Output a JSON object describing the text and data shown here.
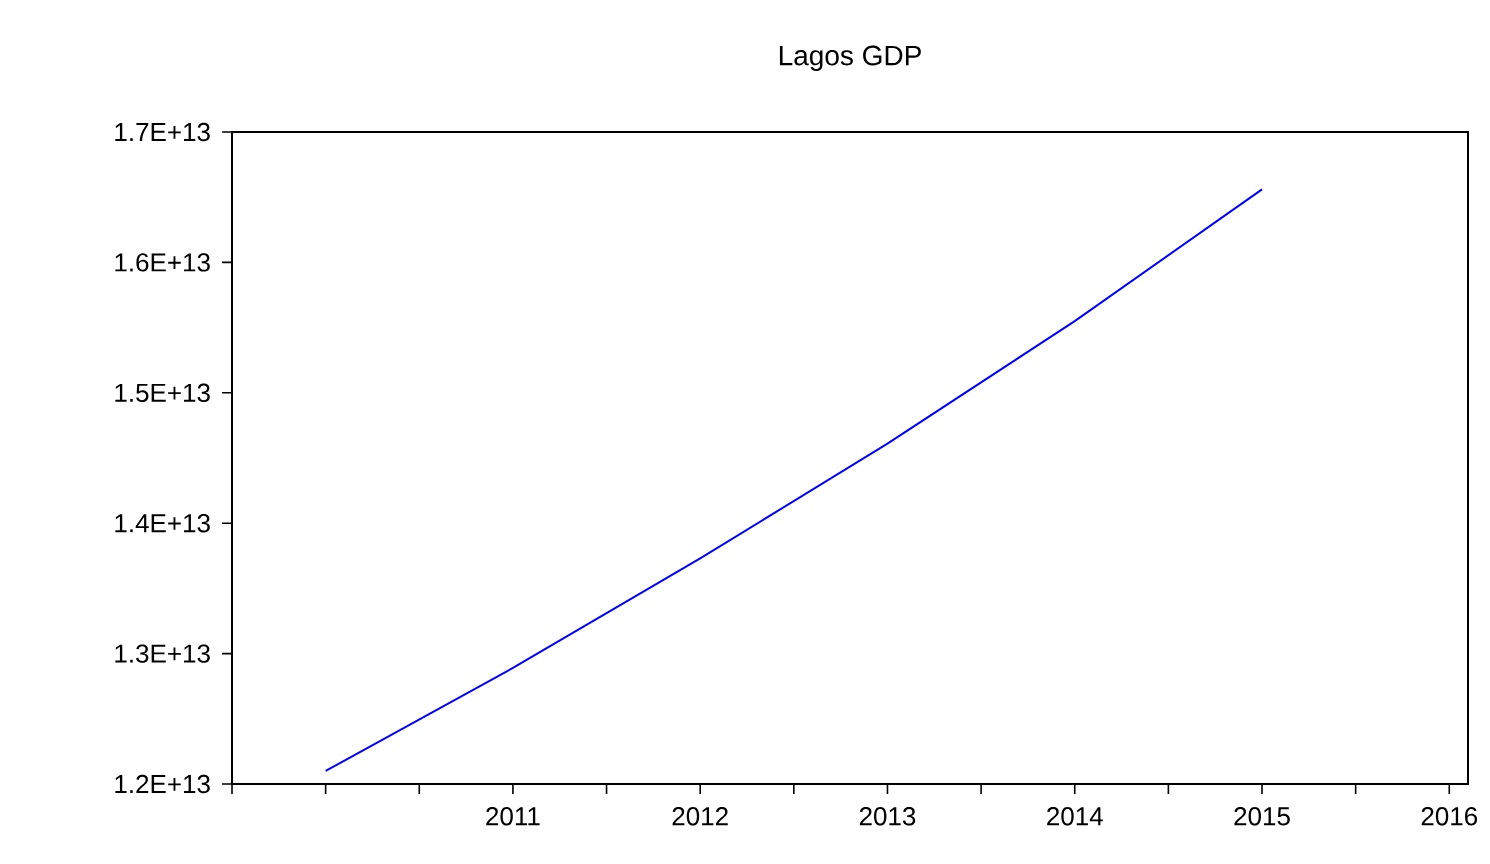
{
  "chart_data": {
    "type": "line",
    "title": "Lagos GDP",
    "x": [
      2010,
      2011,
      2012,
      2013,
      2014,
      2015
    ],
    "values": [
      12100000000000.0,
      12890000000000.0,
      13730000000000.0,
      14610000000000.0,
      15550000000000.0,
      16560000000000.0
    ],
    "color": "#0000ff",
    "marker": "none",
    "line_style": "solid",
    "xlim": [
      2009.5,
      2016.1
    ],
    "xticks": [
      {
        "value": 2009.5,
        "label": null
      },
      {
        "value": 2010,
        "label": null
      },
      {
        "value": 2010.5,
        "label": null
      },
      2011,
      {
        "value": 2011.5,
        "label": null
      },
      2012,
      {
        "value": 2012.5,
        "label": null
      },
      2013,
      {
        "value": 2013.5,
        "label": null
      },
      2014,
      {
        "value": 2014.5,
        "label": null
      },
      2015,
      {
        "value": 2015.5,
        "label": null
      },
      2016
    ],
    "ylim": [
      12000000000000.0,
      17000000000000.0
    ],
    "yticks": [
      {
        "value": 12000000000000.0,
        "label": "1.2E+13"
      },
      {
        "value": 13000000000000.0,
        "label": "1.3E+13"
      },
      {
        "value": 14000000000000.0,
        "label": "1.4E+13"
      },
      {
        "value": 15000000000000.0,
        "label": "1.5E+13"
      },
      {
        "value": 16000000000000.0,
        "label": "1.6E+13"
      },
      {
        "value": 17000000000000.0,
        "label": "1.7E+13"
      }
    ]
  }
}
